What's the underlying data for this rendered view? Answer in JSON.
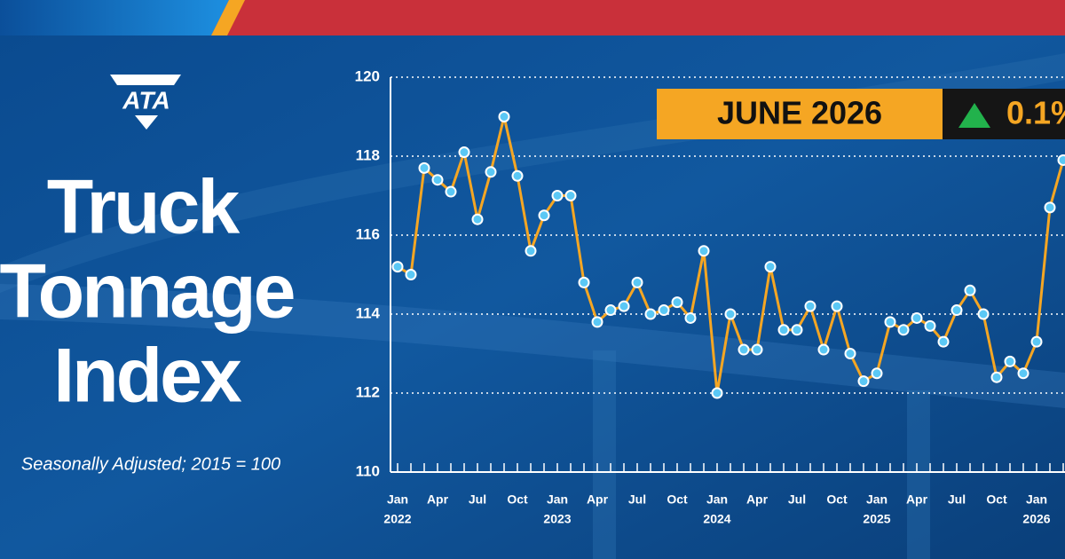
{
  "brand": "ATA",
  "chart_data": {
    "type": "line",
    "title_lines": [
      "Truck",
      "Tonnage",
      "Index"
    ],
    "subtitle": "Seasonally Adjusted; 2015 = 100",
    "badge": {
      "period": "JUNE 2026",
      "change": "0.1%"
    },
    "categories": [
      "Jan",
      null,
      null,
      "Apr",
      null,
      null,
      "Jul",
      null,
      null,
      "Oct",
      null,
      null,
      "Jan",
      null,
      null,
      "Apr",
      null,
      null,
      "Jul",
      null,
      null,
      "Oct",
      null,
      null,
      "Jan",
      null,
      null,
      "Apr",
      null,
      null,
      "Jul",
      null,
      null,
      "Oct",
      null,
      null,
      "Jan",
      null,
      null,
      "Apr",
      null,
      null,
      "Jul",
      null,
      null,
      "Oct",
      null,
      null,
      "Jan",
      null,
      null
    ],
    "years": [
      "2022",
      "2023",
      "2024",
      "2025",
      "2026"
    ],
    "series": [
      {
        "name": "Truck Tonnage Index",
        "color": "#f5a623",
        "marker_color": "#5bc8f5",
        "values": [
          115.2,
          115.0,
          117.7,
          117.4,
          117.1,
          118.1,
          116.4,
          117.6,
          119.0,
          117.5,
          115.6,
          116.5,
          117.0,
          117.0,
          114.8,
          113.8,
          114.1,
          114.2,
          114.8,
          114.0,
          114.1,
          114.3,
          113.9,
          115.6,
          112.0,
          114.0,
          113.1,
          113.1,
          115.2,
          113.6,
          113.6,
          114.2,
          113.1,
          114.2,
          113.0,
          112.3,
          112.5,
          113.8,
          113.6,
          113.9,
          113.7,
          113.3,
          114.1,
          114.6,
          114.0,
          112.4,
          112.8,
          112.5,
          113.3,
          116.7,
          117.9
        ]
      }
    ],
    "ylim": [
      110,
      120
    ],
    "yticks": [
      110,
      112,
      114,
      116,
      118,
      120
    ],
    "grid": true
  }
}
